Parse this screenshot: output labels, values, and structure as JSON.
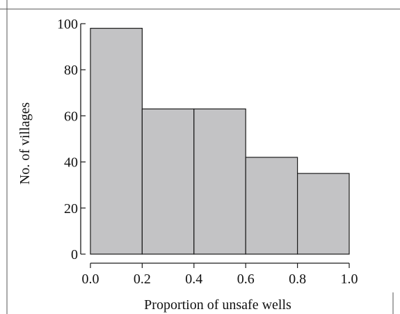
{
  "chart_data": {
    "type": "bar",
    "subtype": "histogram",
    "bins": [
      {
        "start": 0.0,
        "end": 0.2,
        "value": 98
      },
      {
        "start": 0.2,
        "end": 0.4,
        "value": 63
      },
      {
        "start": 0.4,
        "end": 0.6,
        "value": 63
      },
      {
        "start": 0.6,
        "end": 0.8,
        "value": 42
      },
      {
        "start": 0.8,
        "end": 1.0,
        "value": 35
      }
    ],
    "xlabel": "Proportion of unsafe wells",
    "ylabel": "No. of villages",
    "xlim": [
      0.0,
      1.0
    ],
    "ylim": [
      0,
      100
    ],
    "xticks": [
      "0.0",
      "0.2",
      "0.4",
      "0.6",
      "0.8",
      "1.0"
    ],
    "yticks": [
      "0",
      "20",
      "40",
      "60",
      "80",
      "100"
    ],
    "grid": false,
    "colors": {
      "bar_fill": "#c3c3c5",
      "bar_stroke": "#1a1a1a",
      "axis": "#1a1a1a",
      "frame": "#555555"
    }
  }
}
